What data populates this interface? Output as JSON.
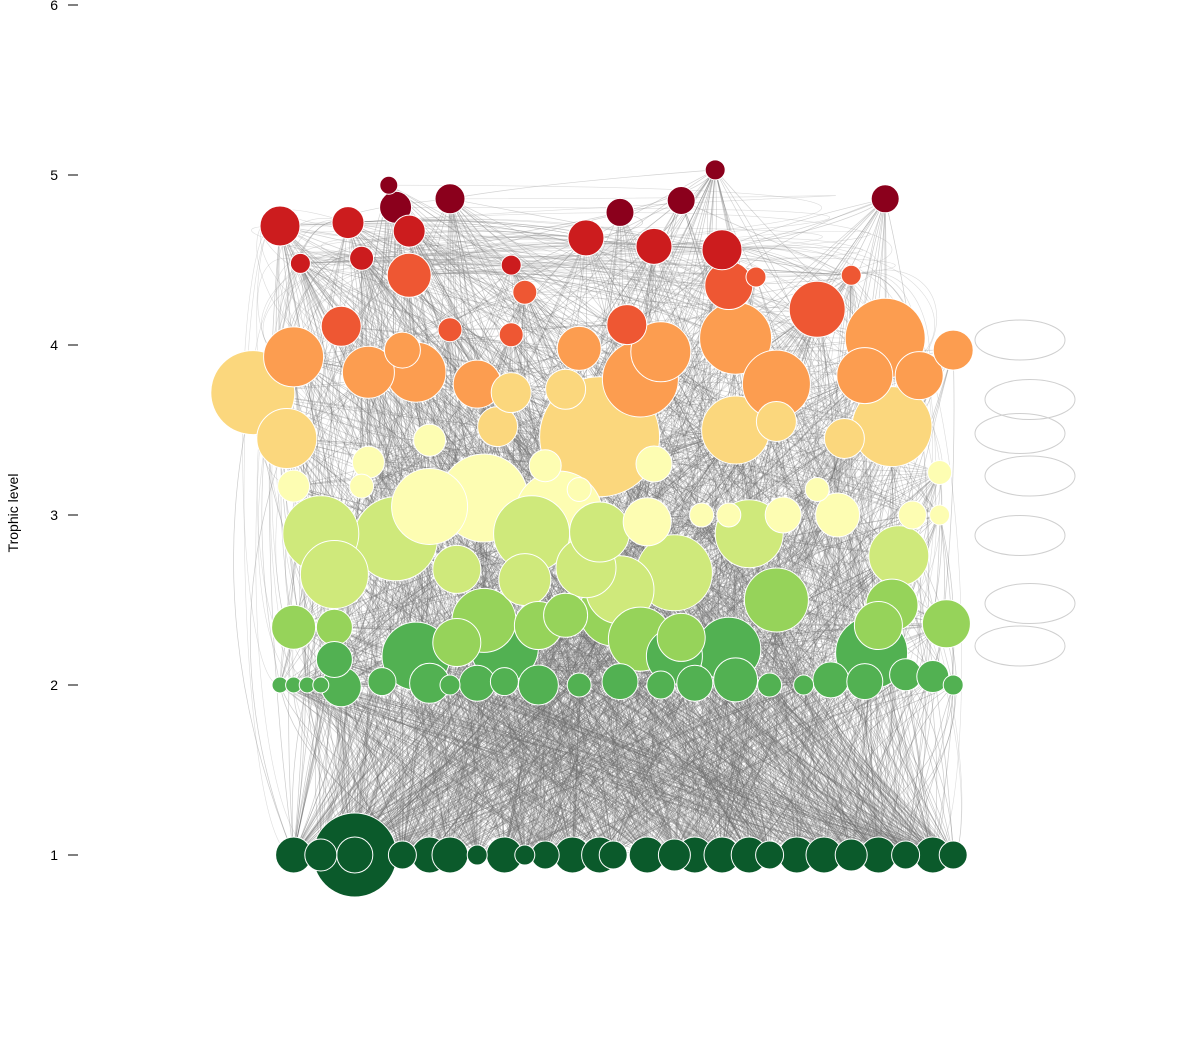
{
  "chart_data": {
    "type": "scatter",
    "ylabel": "Trophic level",
    "ylim": [
      1,
      6
    ],
    "yticks": [
      "1",
      "2",
      "3",
      "4",
      "5",
      "6"
    ],
    "grid": false,
    "link_color": "#6e6e6e",
    "self_loop_color": "#cfcfcf",
    "node_outline": "#ffffff",
    "level_colors": {
      "1": "#0b5a2b",
      "2": "#52b152",
      "2.3": "#96d35a",
      "2.6": "#cfe97b",
      "3": "#fdfdb2",
      "3.5": "#fbd77d",
      "3.8": "#fc9d50",
      "4.1": "#ee5733",
      "4.5": "#cc1c1e",
      "4.8": "#8b001c"
    },
    "nodes": [
      {
        "x": 0.02,
        "y": 1,
        "r": 18
      },
      {
        "x": 0.06,
        "y": 1,
        "r": 16
      },
      {
        "x": 0.11,
        "y": 1,
        "r": 42
      },
      {
        "x": 0.11,
        "y": 1,
        "r": 18
      },
      {
        "x": 0.18,
        "y": 1,
        "r": 14
      },
      {
        "x": 0.22,
        "y": 1,
        "r": 18
      },
      {
        "x": 0.25,
        "y": 1,
        "r": 18
      },
      {
        "x": 0.29,
        "y": 1,
        "r": 10
      },
      {
        "x": 0.33,
        "y": 1,
        "r": 18
      },
      {
        "x": 0.36,
        "y": 1,
        "r": 10
      },
      {
        "x": 0.39,
        "y": 1,
        "r": 14
      },
      {
        "x": 0.43,
        "y": 1,
        "r": 18
      },
      {
        "x": 0.47,
        "y": 1,
        "r": 18
      },
      {
        "x": 0.49,
        "y": 1,
        "r": 14
      },
      {
        "x": 0.54,
        "y": 1,
        "r": 18
      },
      {
        "x": 0.58,
        "y": 1,
        "r": 16
      },
      {
        "x": 0.61,
        "y": 1,
        "r": 18
      },
      {
        "x": 0.65,
        "y": 1,
        "r": 18
      },
      {
        "x": 0.69,
        "y": 1,
        "r": 18
      },
      {
        "x": 0.72,
        "y": 1,
        "r": 14
      },
      {
        "x": 0.76,
        "y": 1,
        "r": 18
      },
      {
        "x": 0.8,
        "y": 1,
        "r": 18
      },
      {
        "x": 0.84,
        "y": 1,
        "r": 16
      },
      {
        "x": 0.88,
        "y": 1,
        "r": 18
      },
      {
        "x": 0.92,
        "y": 1,
        "r": 14
      },
      {
        "x": 0.96,
        "y": 1,
        "r": 18
      },
      {
        "x": 0.99,
        "y": 1,
        "r": 14
      },
      {
        "x": 0.0,
        "y": 2,
        "r": 8
      },
      {
        "x": 0.02,
        "y": 2,
        "r": 8
      },
      {
        "x": 0.04,
        "y": 2,
        "r": 8
      },
      {
        "x": 0.06,
        "y": 2,
        "r": 8
      },
      {
        "x": 0.09,
        "y": 1.99,
        "r": 20
      },
      {
        "x": 0.15,
        "y": 2.02,
        "r": 14
      },
      {
        "x": 0.22,
        "y": 2.01,
        "r": 20
      },
      {
        "x": 0.25,
        "y": 2,
        "r": 10
      },
      {
        "x": 0.29,
        "y": 2.01,
        "r": 18
      },
      {
        "x": 0.33,
        "y": 2.02,
        "r": 14
      },
      {
        "x": 0.38,
        "y": 2,
        "r": 20
      },
      {
        "x": 0.44,
        "y": 2,
        "r": 12
      },
      {
        "x": 0.5,
        "y": 2.02,
        "r": 18
      },
      {
        "x": 0.56,
        "y": 2,
        "r": 14
      },
      {
        "x": 0.61,
        "y": 2.01,
        "r": 18
      },
      {
        "x": 0.67,
        "y": 2.03,
        "r": 22
      },
      {
        "x": 0.72,
        "y": 2,
        "r": 12
      },
      {
        "x": 0.77,
        "y": 2,
        "r": 10
      },
      {
        "x": 0.81,
        "y": 2.03,
        "r": 18
      },
      {
        "x": 0.86,
        "y": 2.02,
        "r": 18
      },
      {
        "x": 0.92,
        "y": 2.06,
        "r": 16
      },
      {
        "x": 0.96,
        "y": 2.05,
        "r": 16
      },
      {
        "x": 0.99,
        "y": 2,
        "r": 10
      },
      {
        "x": 0.02,
        "y": 2.34,
        "r": 22
      },
      {
        "x": 0.08,
        "y": 2.34,
        "r": 18
      },
      {
        "x": 0.08,
        "y": 2.15,
        "r": 18
      },
      {
        "x": 0.2,
        "y": 2.17,
        "r": 34
      },
      {
        "x": 0.26,
        "y": 2.25,
        "r": 24
      },
      {
        "x": 0.3,
        "y": 2.38,
        "r": 32
      },
      {
        "x": 0.33,
        "y": 2.22,
        "r": 34
      },
      {
        "x": 0.38,
        "y": 2.35,
        "r": 24
      },
      {
        "x": 0.42,
        "y": 2.41,
        "r": 22
      },
      {
        "x": 0.49,
        "y": 2.43,
        "r": 34
      },
      {
        "x": 0.53,
        "y": 2.27,
        "r": 32
      },
      {
        "x": 0.58,
        "y": 2.17,
        "r": 28
      },
      {
        "x": 0.59,
        "y": 2.28,
        "r": 24
      },
      {
        "x": 0.66,
        "y": 2.21,
        "r": 32
      },
      {
        "x": 0.87,
        "y": 2.19,
        "r": 36
      },
      {
        "x": 0.88,
        "y": 2.35,
        "r": 24
      },
      {
        "x": 0.9,
        "y": 2.47,
        "r": 26
      },
      {
        "x": 0.98,
        "y": 2.36,
        "r": 24
      },
      {
        "x": 0.08,
        "y": 2.65,
        "r": 34
      },
      {
        "x": 0.26,
        "y": 2.68,
        "r": 24
      },
      {
        "x": 0.36,
        "y": 2.62,
        "r": 26
      },
      {
        "x": 0.45,
        "y": 2.69,
        "r": 30
      },
      {
        "x": 0.5,
        "y": 2.56,
        "r": 34
      },
      {
        "x": 0.58,
        "y": 2.66,
        "r": 38
      },
      {
        "x": 0.73,
        "y": 2.5,
        "r": 32
      },
      {
        "x": 0.91,
        "y": 2.76,
        "r": 30
      },
      {
        "x": 0.06,
        "y": 2.89,
        "r": 38
      },
      {
        "x": 0.17,
        "y": 2.86,
        "r": 42
      },
      {
        "x": 0.22,
        "y": 3.05,
        "r": 38
      },
      {
        "x": 0.3,
        "y": 3.1,
        "r": 44
      },
      {
        "x": 0.37,
        "y": 2.89,
        "r": 38
      },
      {
        "x": 0.41,
        "y": 3.0,
        "r": 44
      },
      {
        "x": 0.47,
        "y": 2.9,
        "r": 30
      },
      {
        "x": 0.54,
        "y": 2.96,
        "r": 24
      },
      {
        "x": 0.62,
        "y": 3.0,
        "r": 12
      },
      {
        "x": 0.66,
        "y": 3.0,
        "r": 12
      },
      {
        "x": 0.69,
        "y": 2.89,
        "r": 34
      },
      {
        "x": 0.74,
        "y": 3.0,
        "r": 18
      },
      {
        "x": 0.82,
        "y": 3.0,
        "r": 22
      },
      {
        "x": 0.93,
        "y": 3.0,
        "r": 14
      },
      {
        "x": 0.97,
        "y": 3.0,
        "r": 10
      },
      {
        "x": 0.02,
        "y": 3.17,
        "r": 16
      },
      {
        "x": 0.12,
        "y": 3.17,
        "r": 12
      },
      {
        "x": 0.44,
        "y": 3.15,
        "r": 12
      },
      {
        "x": 0.79,
        "y": 3.15,
        "r": 12
      },
      {
        "x": 0.01,
        "y": 3.45,
        "r": 30
      },
      {
        "x": 0.13,
        "y": 3.31,
        "r": 16
      },
      {
        "x": 0.22,
        "y": 3.44,
        "r": 16
      },
      {
        "x": 0.32,
        "y": 3.52,
        "r": 20
      },
      {
        "x": 0.39,
        "y": 3.29,
        "r": 16
      },
      {
        "x": 0.47,
        "y": 3.46,
        "r": 60
      },
      {
        "x": 0.55,
        "y": 3.3,
        "r": 18
      },
      {
        "x": 0.67,
        "y": 3.5,
        "r": 34
      },
      {
        "x": 0.73,
        "y": 3.55,
        "r": 20
      },
      {
        "x": 0.83,
        "y": 3.45,
        "r": 20
      },
      {
        "x": 0.9,
        "y": 3.52,
        "r": 40
      },
      {
        "x": 0.97,
        "y": 3.25,
        "r": 12
      },
      {
        "x": -0.04,
        "y": 3.72,
        "r": 42
      },
      {
        "x": 0.13,
        "y": 3.84,
        "r": 26
      },
      {
        "x": 0.2,
        "y": 3.84,
        "r": 30
      },
      {
        "x": 0.29,
        "y": 3.77,
        "r": 24
      },
      {
        "x": 0.34,
        "y": 3.72,
        "r": 20
      },
      {
        "x": 0.42,
        "y": 3.74,
        "r": 20
      },
      {
        "x": 0.53,
        "y": 3.8,
        "r": 38
      },
      {
        "x": 0.73,
        "y": 3.77,
        "r": 34
      },
      {
        "x": 0.86,
        "y": 3.82,
        "r": 28
      },
      {
        "x": 0.94,
        "y": 3.82,
        "r": 24
      },
      {
        "x": 0.02,
        "y": 3.93,
        "r": 30
      },
      {
        "x": 0.09,
        "y": 4.11,
        "r": 20
      },
      {
        "x": 0.18,
        "y": 3.97,
        "r": 18
      },
      {
        "x": 0.25,
        "y": 4.09,
        "r": 12
      },
      {
        "x": 0.34,
        "y": 4.06,
        "r": 12
      },
      {
        "x": 0.44,
        "y": 3.98,
        "r": 22
      },
      {
        "x": 0.51,
        "y": 4.12,
        "r": 20
      },
      {
        "x": 0.56,
        "y": 3.96,
        "r": 30
      },
      {
        "x": 0.67,
        "y": 4.04,
        "r": 36
      },
      {
        "x": 0.79,
        "y": 4.21,
        "r": 28
      },
      {
        "x": 0.89,
        "y": 4.04,
        "r": 40
      },
      {
        "x": 0.99,
        "y": 3.97,
        "r": 20
      },
      {
        "x": 0.03,
        "y": 4.48,
        "r": 10
      },
      {
        "x": 0.12,
        "y": 4.51,
        "r": 12
      },
      {
        "x": 0.19,
        "y": 4.41,
        "r": 22
      },
      {
        "x": 0.34,
        "y": 4.47,
        "r": 10
      },
      {
        "x": 0.36,
        "y": 4.31,
        "r": 12
      },
      {
        "x": 0.45,
        "y": 4.63,
        "r": 18
      },
      {
        "x": 0.55,
        "y": 4.58,
        "r": 18
      },
      {
        "x": 0.65,
        "y": 4.56,
        "r": 20
      },
      {
        "x": 0.66,
        "y": 4.35,
        "r": 24
      },
      {
        "x": 0.7,
        "y": 4.4,
        "r": 10
      },
      {
        "x": 0.84,
        "y": 4.41,
        "r": 10
      },
      {
        "x": 0.0,
        "y": 4.7,
        "r": 20
      },
      {
        "x": 0.1,
        "y": 4.72,
        "r": 16
      },
      {
        "x": 0.17,
        "y": 4.81,
        "r": 16
      },
      {
        "x": 0.19,
        "y": 4.67,
        "r": 16
      },
      {
        "x": 0.16,
        "y": 4.94,
        "r": 9
      },
      {
        "x": 0.25,
        "y": 4.86,
        "r": 15
      },
      {
        "x": 0.5,
        "y": 4.78,
        "r": 14
      },
      {
        "x": 0.59,
        "y": 4.85,
        "r": 14
      },
      {
        "x": 0.64,
        "y": 5.03,
        "r": 10
      },
      {
        "x": 0.89,
        "y": 4.86,
        "r": 14
      }
    ]
  }
}
